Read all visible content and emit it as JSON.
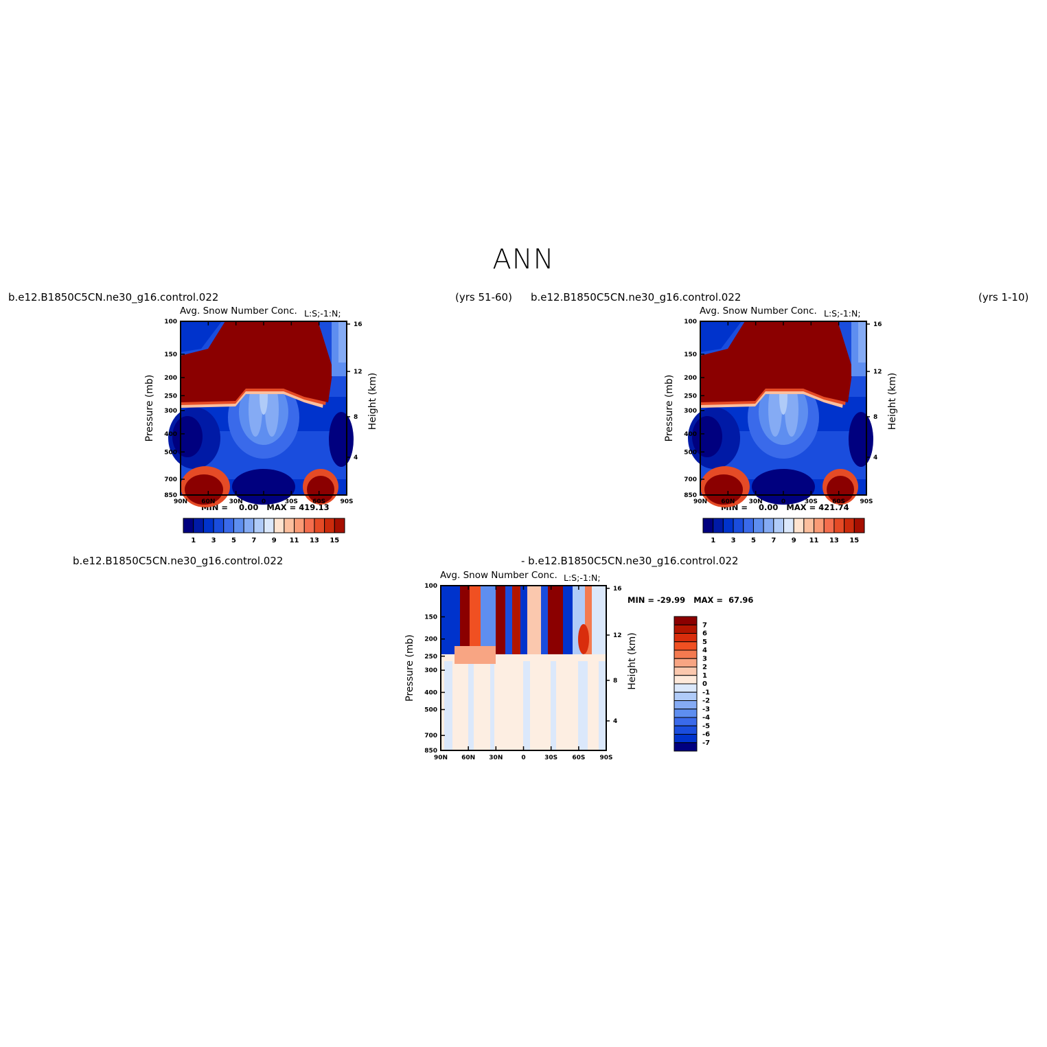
{
  "figure": {
    "title": "ANN"
  },
  "panels": [
    {
      "case_left": "b.e12.B1850C5CN.ne30_g16.control.022",
      "case_right": "(yrs 51-60)",
      "variable": "Avg. Snow Number Conc.",
      "level_label": "L:S;-1:N;",
      "stats": {
        "min_label": "MIN =",
        "min": "0.00",
        "max_label": "MAX =",
        "max": "419.13"
      }
    },
    {
      "case_left": "b.e12.B1850C5CN.ne30_g16.control.022",
      "case_right": "(yrs 1-10)",
      "variable": "Avg. Snow Number Conc.",
      "level_label": "L:S;-1:N;",
      "stats": {
        "min_label": "MIN =",
        "min": "0.00",
        "max_label": "MAX =",
        "max": "421.74"
      }
    },
    {
      "case_left": "b.e12.B1850C5CN.ne30_g16.control.022",
      "case_right": "- b.e12.B1850C5CN.ne30_g16.control.022",
      "variable": "Avg. Snow Number Conc.",
      "level_label": "L:S;-1:N;",
      "stats": {
        "min_label": "MIN =",
        "min": "-29.99",
        "max_label": "MAX =",
        "max": "67.96"
      }
    }
  ],
  "chart_data": [
    {
      "type": "heatmap",
      "x_ticks": [
        "90N",
        "60N",
        "30N",
        "0",
        "30S",
        "60S",
        "90S"
      ],
      "y_ticks": [
        "100",
        "150",
        "200",
        "250",
        "300",
        "400",
        "500",
        "700",
        "850"
      ],
      "y2_ticks": [
        "16",
        "12",
        "8",
        "4"
      ],
      "ylabel": "Pressure (mb)",
      "y2label": "Height (km)",
      "colorbar_labels": [
        "1",
        "3",
        "5",
        "7",
        "9",
        "11",
        "13",
        "15"
      ],
      "colors": [
        "#00007f",
        "#001aa6",
        "#0033cc",
        "#1a4ddd",
        "#3a6aea",
        "#5e8ef0",
        "#85abf4",
        "#b0cbf8",
        "#dbe8fb",
        "#fee3cf",
        "#fcbf9e",
        "#fa9b76",
        "#f46e4e",
        "#e54b26",
        "#cc2b0c",
        "#a60f00",
        "#8b0000"
      ]
    },
    {
      "type": "heatmap",
      "x_ticks": [
        "90N",
        "60N",
        "30N",
        "0",
        "30S",
        "60S",
        "90S"
      ],
      "y_ticks": [
        "100",
        "150",
        "200",
        "250",
        "300",
        "400",
        "500",
        "700",
        "850"
      ],
      "y2_ticks": [
        "16",
        "12",
        "8",
        "4"
      ],
      "ylabel": "Pressure (mb)",
      "y2label": "Height (km)",
      "colorbar_labels": [
        "1",
        "3",
        "5",
        "7",
        "9",
        "11",
        "13",
        "15"
      ],
      "colors": [
        "#00007f",
        "#001aa6",
        "#0033cc",
        "#1a4ddd",
        "#3a6aea",
        "#5e8ef0",
        "#85abf4",
        "#b0cbf8",
        "#dbe8fb",
        "#fee3cf",
        "#fcbf9e",
        "#fa9b76",
        "#f46e4e",
        "#e54b26",
        "#cc2b0c",
        "#a60f00",
        "#8b0000"
      ]
    },
    {
      "type": "heatmap",
      "x_ticks": [
        "90N",
        "60N",
        "30N",
        "0",
        "30S",
        "60S",
        "90S"
      ],
      "y_ticks": [
        "100",
        "150",
        "200",
        "250",
        "300",
        "400",
        "500",
        "700",
        "850"
      ],
      "y2_ticks": [
        "16",
        "12",
        "8",
        "4"
      ],
      "ylabel": "Pressure (mb)",
      "y2label": "Height (km)",
      "colorbar_labels": [
        "7",
        "6",
        "5",
        "4",
        "3",
        "2",
        "1",
        "0",
        "-1",
        "-2",
        "-3",
        "-4",
        "-5",
        "-6",
        "-7"
      ],
      "colors": [
        "#8b0000",
        "#b31500",
        "#d92d0c",
        "#f05022",
        "#f47a50",
        "#f8a583",
        "#fbc8ae",
        "#fee9da",
        "#dbe8fb",
        "#b0cbf8",
        "#85abf4",
        "#5e8ef0",
        "#3a6aea",
        "#1a4ddd",
        "#0033cc",
        "#00007f"
      ]
    }
  ]
}
